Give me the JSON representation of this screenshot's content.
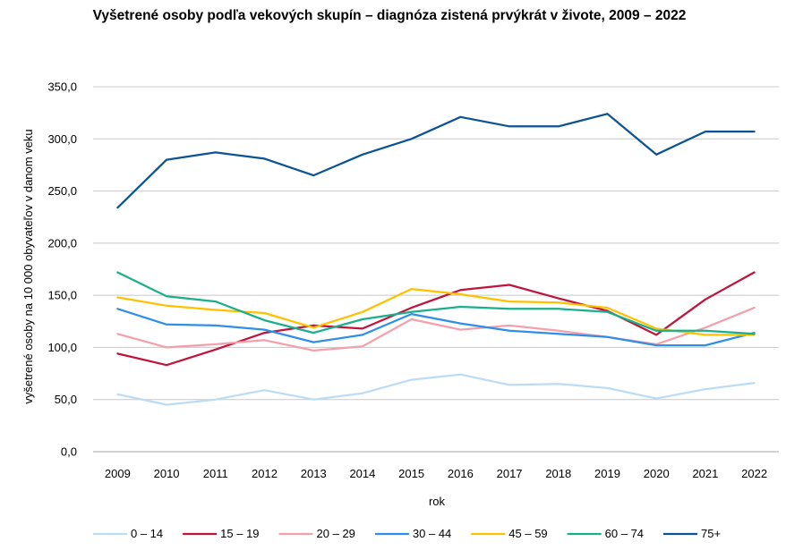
{
  "chart_data": {
    "type": "line",
    "title": "Vyšetrené osoby podľa vekových skupín – diagnóza zistená prvýkrát v živote, 2009 – 2022",
    "xlabel": "rok",
    "ylabel": "vyšetrené osoby na 10 000 obyvateľov v danom veku",
    "categories": [
      "2009",
      "2010",
      "2011",
      "2012",
      "2013",
      "2014",
      "2015",
      "2016",
      "2017",
      "2018",
      "2019",
      "2020",
      "2021",
      "2022"
    ],
    "ylim": [
      0,
      350
    ],
    "yticks": [
      "0,0",
      "50,0",
      "100,0",
      "150,0",
      "200,0",
      "250,0",
      "300,0",
      "350,0"
    ],
    "grid": true,
    "legend_position": "bottom",
    "series": [
      {
        "name": "0 – 14",
        "color": "#bcdcf6",
        "values": [
          55,
          45,
          50,
          59,
          50,
          56,
          69,
          74,
          64,
          65,
          61,
          51,
          60,
          66
        ]
      },
      {
        "name": "15 – 19",
        "color": "#c0143c",
        "values": [
          94,
          83,
          98,
          114,
          121,
          118,
          138,
          155,
          160,
          147,
          135,
          112,
          146,
          172
        ]
      },
      {
        "name": "20 – 29",
        "color": "#f4a0ac",
        "values": [
          113,
          100,
          103,
          107,
          97,
          101,
          127,
          117,
          121,
          116,
          110,
          103,
          119,
          138
        ]
      },
      {
        "name": "30 – 44",
        "color": "#2f8fe8",
        "values": [
          137,
          122,
          121,
          117,
          105,
          112,
          132,
          123,
          116,
          113,
          110,
          102,
          102,
          114
        ]
      },
      {
        "name": "45 – 59",
        "color": "#ffc000",
        "values": [
          148,
          140,
          136,
          133,
          119,
          134,
          156,
          151,
          144,
          143,
          138,
          118,
          112,
          112
        ]
      },
      {
        "name": "60 – 74",
        "color": "#1aaf8a",
        "values": [
          172,
          149,
          144,
          126,
          114,
          127,
          134,
          139,
          137,
          137,
          134,
          116,
          116,
          113
        ]
      },
      {
        "name": "75+",
        "color": "#0b5394",
        "values": [
          234,
          280,
          287,
          281,
          265,
          285,
          300,
          321,
          312,
          312,
          324,
          285,
          307,
          307
        ]
      }
    ]
  }
}
